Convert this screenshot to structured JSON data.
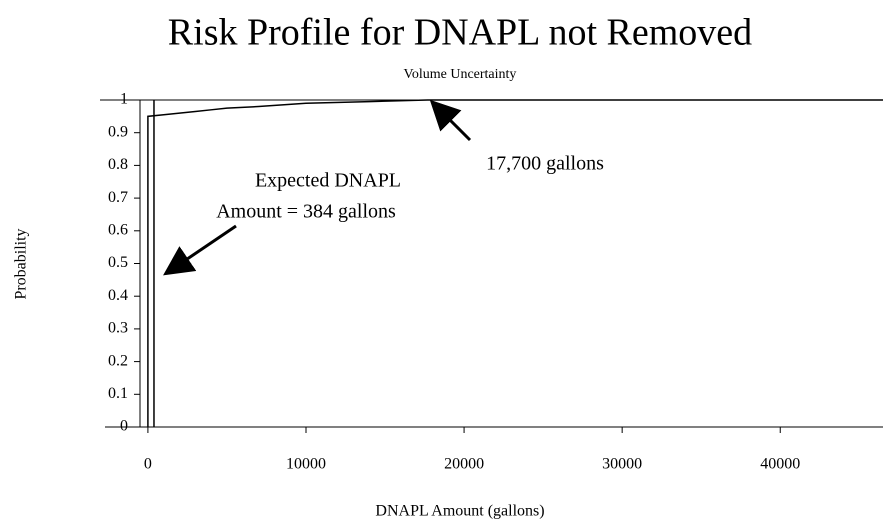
{
  "chart_data": {
    "type": "line",
    "title": "Risk Profile for DNAPL not Removed",
    "subtitle": "Volume Uncertainty",
    "x_label": "DNAPL Amount (gallons)",
    "y_label": "Probability",
    "annotations": [
      "Expected DNAPL",
      "Amount = 384 gallons",
      "17,700 gallons"
    ],
    "xlim": [
      -500,
      46500
    ],
    "xticks": [
      0,
      10000,
      20000,
      30000,
      40000
    ],
    "ylim": [
      0,
      1
    ],
    "yticks": [
      0,
      0.1,
      0.2,
      0.3,
      0.4,
      0.5,
      0.6,
      0.7,
      0.8,
      0.9,
      1
    ],
    "series": [
      {
        "color": "#000000",
        "x": [
          0,
          0,
          1000,
          2000,
          3000,
          4000,
          5000,
          7000,
          10000,
          14000,
          17700,
          46500
        ],
        "values": [
          0,
          0.95,
          0.955,
          0.96,
          0.965,
          0.97,
          0.975,
          0.98,
          0.99,
          0.995,
          1,
          1
        ]
      },
      {
        "color": "#000000",
        "x": [
          384,
          384
        ],
        "values": [
          0,
          1
        ]
      }
    ]
  }
}
